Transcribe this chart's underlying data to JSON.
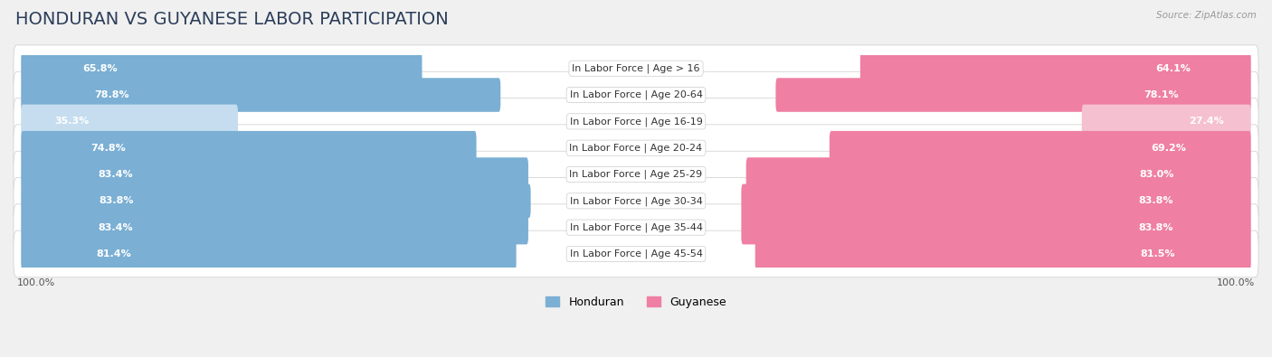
{
  "title": "HONDURAN VS GUYANESE LABOR PARTICIPATION",
  "source": "Source: ZipAtlas.com",
  "categories": [
    "In Labor Force | Age > 16",
    "In Labor Force | Age 20-64",
    "In Labor Force | Age 16-19",
    "In Labor Force | Age 20-24",
    "In Labor Force | Age 25-29",
    "In Labor Force | Age 30-34",
    "In Labor Force | Age 35-44",
    "In Labor Force | Age 45-54"
  ],
  "honduran_values": [
    65.8,
    78.8,
    35.3,
    74.8,
    83.4,
    83.8,
    83.4,
    81.4
  ],
  "guyanese_values": [
    64.1,
    78.1,
    27.4,
    69.2,
    83.0,
    83.8,
    83.8,
    81.5
  ],
  "honduran_color": "#7BAFD4",
  "guyanese_color": "#EF7FA3",
  "honduran_color_light": "#C5DDEF",
  "guyanese_color_light": "#F5C0D0",
  "row_bg_color": "#FFFFFF",
  "row_border_color": "#DDDDDD",
  "max_value": 100.0,
  "legend_honduran": "Honduran",
  "legend_guyanese": "Guyanese",
  "title_fontsize": 14,
  "label_fontsize": 8,
  "value_fontsize": 8,
  "axis_label_fontsize": 8,
  "title_color": "#2C3E5A",
  "source_color": "#999999"
}
